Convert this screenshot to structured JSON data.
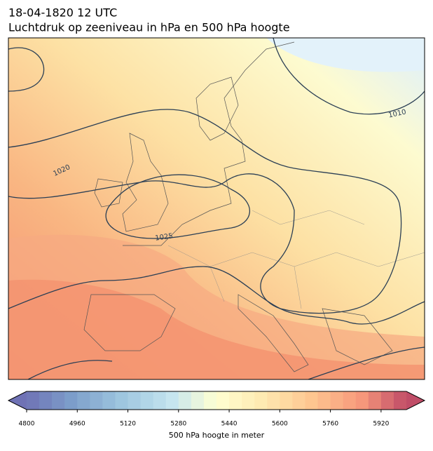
{
  "header": {
    "time": "18-04-1820 12 UTC",
    "title": "Luchtdruk op zeeniveau in hPa en 500 hPa hoogte"
  },
  "map": {
    "isobar_labels": [
      "1010",
      "1020",
      "1025"
    ]
  },
  "colorbar": {
    "range": [
      4800,
      6000
    ],
    "step": 40,
    "ticks": [
      4800,
      4960,
      5120,
      5280,
      5440,
      5600,
      5760,
      5920
    ],
    "label": "500 hPa hoogte in meter"
  }
}
